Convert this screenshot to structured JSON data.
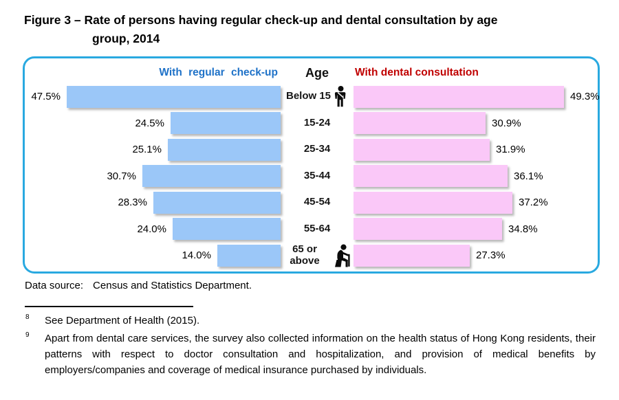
{
  "title": {
    "line1": "Figure 3 – Rate of persons having regular check-up and dental consultation by age",
    "line2": "group, 2014"
  },
  "chart_data": {
    "type": "bar",
    "orientation": "diverging-horizontal",
    "title": "Rate of persons having regular check-up and dental consultation by age group, 2014",
    "center_axis_label": "Age",
    "categories": [
      "Below 15",
      "15-24",
      "25-34",
      "35-44",
      "45-54",
      "55-64",
      "65 or above"
    ],
    "series": [
      {
        "name": "With regular check-up",
        "side": "left",
        "color": "#9BC7F8",
        "header_color": "#1F72C8",
        "values": [
          47.5,
          24.5,
          25.1,
          30.7,
          28.3,
          24.0,
          14.0
        ]
      },
      {
        "name": "With dental consultation",
        "side": "right",
        "color": "#FAC8F8",
        "header_color": "#C00000",
        "values": [
          49.3,
          30.9,
          31.9,
          36.1,
          37.2,
          34.8,
          27.3
        ]
      }
    ],
    "value_suffix": "%",
    "age_icons": {
      "0": "child-icon",
      "6": "elderly-person-icon"
    },
    "xlim": [
      0,
      52
    ],
    "legend_position": "top",
    "grid": false
  },
  "data_source": {
    "label": "Data source:",
    "value": "Census and Statistics Department."
  },
  "footnotes": [
    {
      "marker": "8",
      "text": "See Department of Health (2015)."
    },
    {
      "marker": "9",
      "text": "Apart from dental care services, the survey also collected information on the health status of Hong Kong residents, their patterns with respect to doctor consultation and hospitalization, and provision of medical benefits by employers/companies and coverage of medical insurance purchased by individuals."
    }
  ],
  "colors": {
    "box_border": "#29A9E0",
    "regular_checkup_bar": "#9BC7F8",
    "dental_consultation_bar": "#FAC8F8",
    "left_header_text": "#1F72C8",
    "right_header_text": "#C00000"
  }
}
